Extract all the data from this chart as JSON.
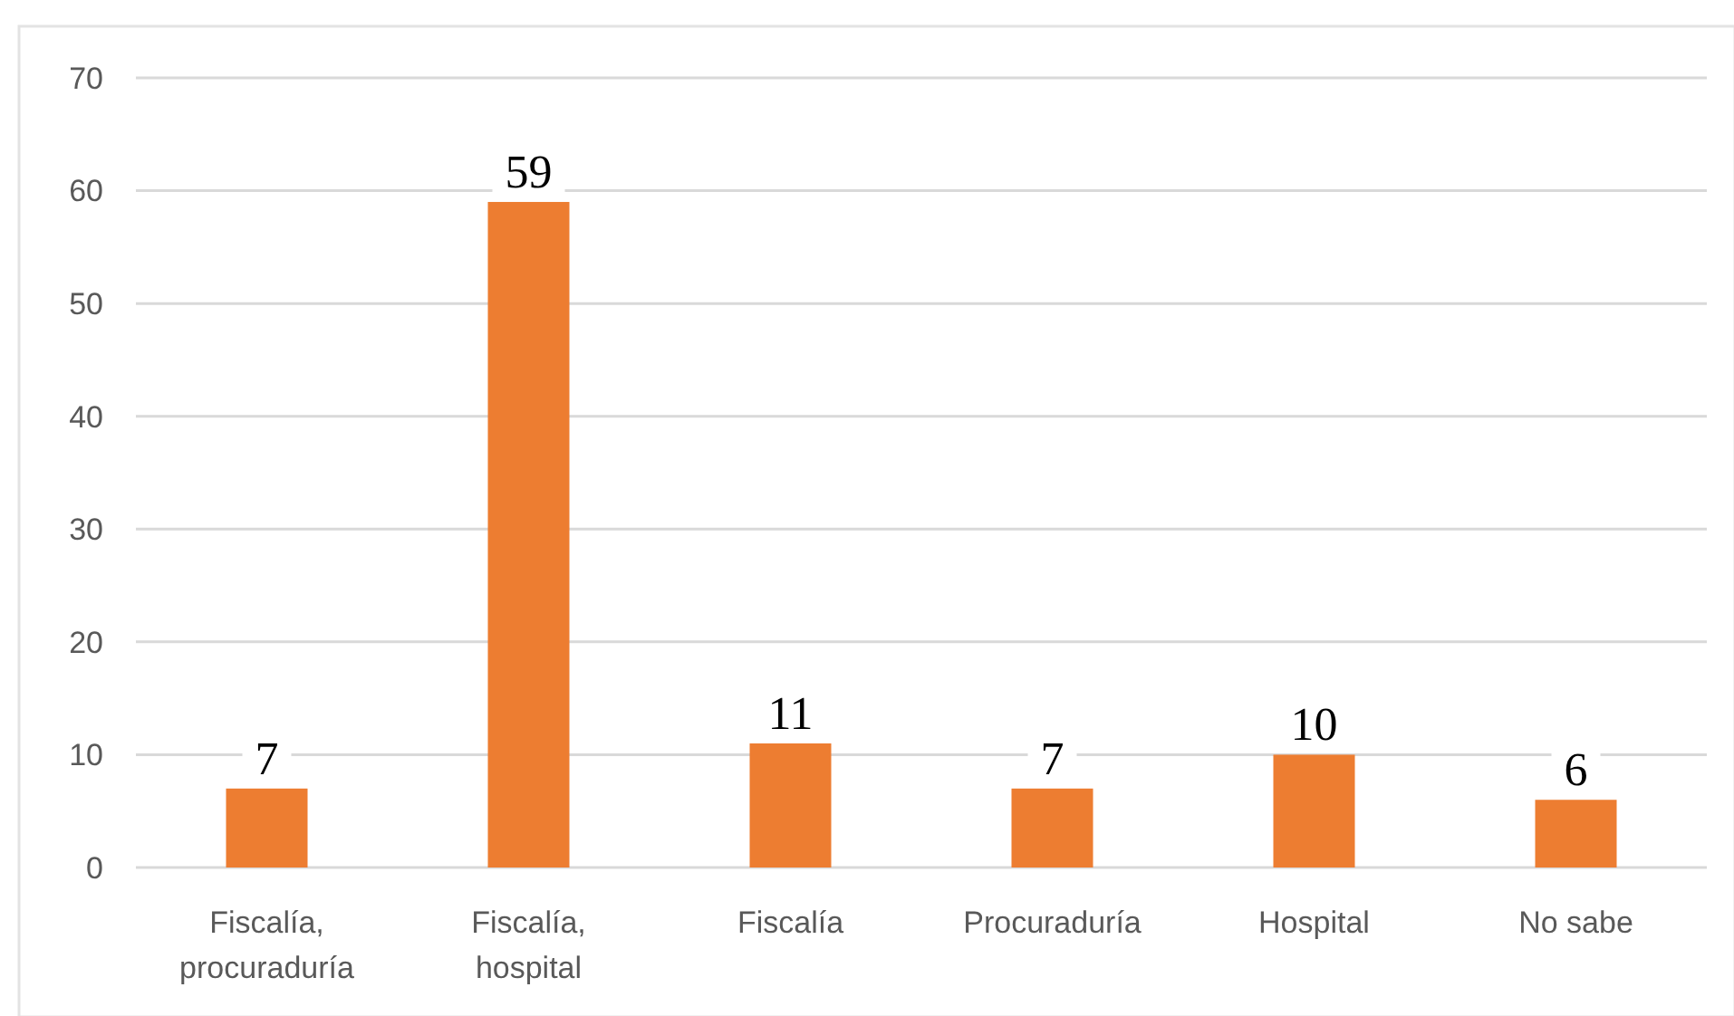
{
  "chart_data": {
    "type": "bar",
    "categories": [
      "Fiscalía, procuraduría",
      "Fiscalía, hospital",
      "Fiscalía",
      "Procuraduría",
      "Hospital",
      "No sabe"
    ],
    "values": [
      7,
      59,
      11,
      7,
      10,
      6
    ],
    "color": "#ed7d31",
    "ylim": [
      0,
      70
    ],
    "yticks": [
      0,
      10,
      20,
      30,
      40,
      50,
      60,
      70
    ],
    "grid": "y",
    "data_labels": true
  }
}
